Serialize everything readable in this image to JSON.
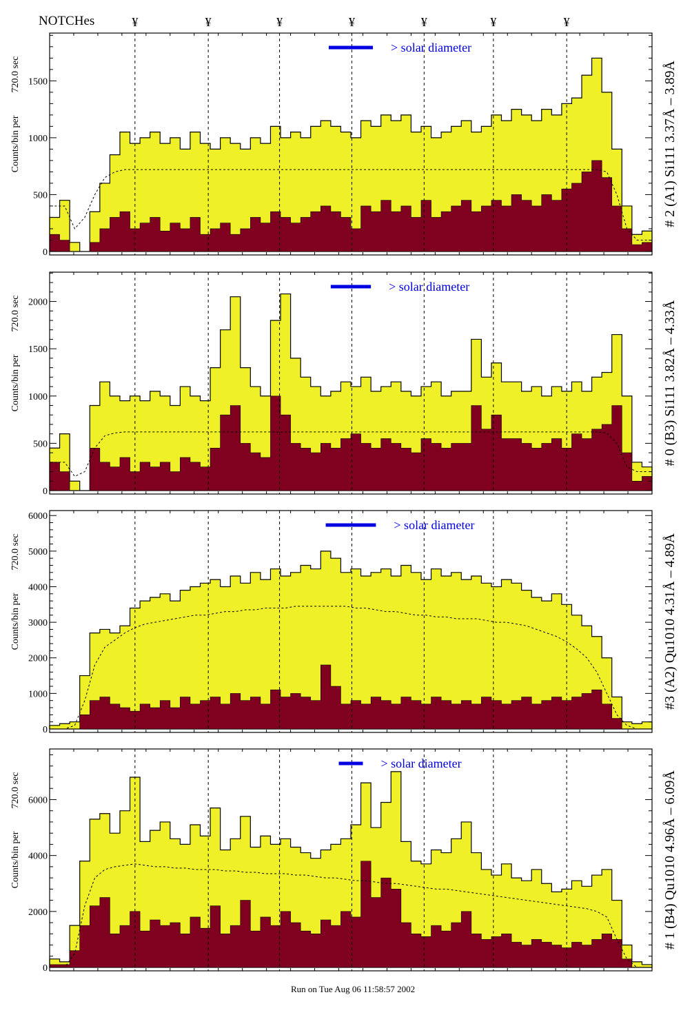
{
  "chart_data": {
    "type": "bar",
    "header_label": "NOTCHes",
    "notch_marker": "¥",
    "notch_positions": [
      8.5,
      15.8,
      22.9,
      30.1,
      37.3,
      44.2,
      51.5
    ],
    "xlim": [
      0,
      60
    ],
    "ylabel": "Counts/bin per",
    "ylabel2": "720.0 sec",
    "solar_label": "> solar diameter",
    "footer": "Run on Tue Aug 06 11:58:57 2002",
    "colors": {
      "total": "#f0f028",
      "component": "#800020",
      "solar": "#0000e0"
    },
    "panels": [
      {
        "title": "# 2 (A1) Si111  3.37Å – 3.89Å",
        "ylim": [
          0,
          1920
        ],
        "yticks": [
          0,
          500,
          1000,
          1500
        ],
        "solar_diameter_bins": [
          27.8,
          32.2
        ],
        "series": [
          {
            "name": "total",
            "values": [
              300,
              450,
              80,
              0,
              350,
              600,
              850,
              1050,
              950,
              1000,
              1050,
              950,
              1000,
              900,
              1050,
              950,
              900,
              1000,
              950,
              900,
              1000,
              950,
              1100,
              1000,
              1050,
              1000,
              1100,
              1150,
              1100,
              1050,
              1000,
              1150,
              1100,
              1200,
              1150,
              1200,
              1050,
              1100,
              1000,
              1050,
              1100,
              1150,
              1050,
              1100,
              1200,
              1150,
              1250,
              1200,
              1150,
              1250,
              1200,
              1300,
              1350,
              1550,
              1700,
              1400,
              900,
              400,
              150,
              180
            ]
          },
          {
            "name": "component",
            "values": [
              150,
              100,
              0,
              0,
              80,
              200,
              300,
              350,
              200,
              250,
              300,
              180,
              250,
              200,
              300,
              150,
              200,
              250,
              150,
              200,
              300,
              250,
              350,
              300,
              250,
              300,
              350,
              400,
              350,
              300,
              200,
              400,
              350,
              450,
              350,
              400,
              300,
              450,
              300,
              350,
              400,
              450,
              350,
              400,
              450,
              400,
              500,
              450,
              400,
              500,
              450,
              550,
              600,
              700,
              800,
              650,
              400,
              200,
              60,
              80
            ]
          },
          {
            "name": "smooth",
            "values": [
              400,
              400,
              200,
              300,
              500,
              650,
              700,
              720,
              720,
              720,
              720,
              720,
              720,
              720,
              720,
              720,
              720,
              720,
              720,
              720,
              720,
              720,
              720,
              720,
              720,
              720,
              720,
              720,
              720,
              720,
              720,
              720,
              720,
              720,
              720,
              720,
              720,
              720,
              720,
              720,
              720,
              720,
              720,
              720,
              720,
              720,
              720,
              720,
              720,
              720,
              720,
              720,
              720,
              720,
              720,
              700,
              500,
              200,
              100,
              100
            ]
          }
        ]
      },
      {
        "title": "# 0 (B3) Si111  3.82Å – 4.33Å",
        "ylim": [
          0,
          2310
        ],
        "yticks": [
          0,
          500,
          1000,
          1500,
          2000
        ],
        "solar_diameter_bins": [
          28.0,
          32.0
        ],
        "series": [
          {
            "name": "total",
            "values": [
              450,
              600,
              100,
              0,
              900,
              1150,
              1000,
              950,
              1000,
              950,
              1050,
              1000,
              900,
              1100,
              1000,
              950,
              1300,
              1700,
              2050,
              1300,
              1100,
              1000,
              1800,
              2080,
              1400,
              1200,
              1100,
              1000,
              1050,
              1150,
              1100,
              1200,
              1050,
              1100,
              1150,
              1050,
              1000,
              1100,
              1150,
              1000,
              1050,
              1050,
              1600,
              1200,
              1350,
              1150,
              1150,
              1050,
              1100,
              1000,
              1100,
              1050,
              1150,
              1050,
              1200,
              1250,
              1650,
              1000,
              300,
              250
            ]
          },
          {
            "name": "component",
            "values": [
              300,
              200,
              0,
              0,
              450,
              300,
              250,
              350,
              200,
              300,
              250,
              300,
              200,
              350,
              300,
              250,
              450,
              800,
              900,
              500,
              400,
              350,
              1000,
              800,
              500,
              450,
              400,
              500,
              450,
              550,
              600,
              500,
              450,
              550,
              500,
              450,
              400,
              550,
              500,
              450,
              500,
              500,
              900,
              650,
              800,
              550,
              550,
              500,
              450,
              500,
              550,
              450,
              600,
              550,
              650,
              700,
              900,
              400,
              100,
              150
            ]
          },
          {
            "name": "smooth",
            "values": [
              300,
              300,
              150,
              200,
              450,
              580,
              610,
              620,
              620,
              620,
              620,
              620,
              620,
              620,
              620,
              620,
              620,
              620,
              620,
              620,
              620,
              620,
              620,
              620,
              620,
              620,
              620,
              620,
              620,
              620,
              620,
              620,
              620,
              620,
              620,
              620,
              620,
              620,
              620,
              620,
              620,
              620,
              620,
              620,
              620,
              620,
              620,
              620,
              620,
              620,
              620,
              620,
              620,
              620,
              620,
              610,
              500,
              250,
              200,
              200
            ]
          }
        ]
      },
      {
        "title": "#3 (A2) Qu1010  4.31Å – 4.89Å",
        "ylim": [
          0,
          6140
        ],
        "yticks": [
          0,
          1000,
          2000,
          3000,
          4000,
          5000,
          6000
        ],
        "solar_diameter_bins": [
          27.5,
          32.5
        ],
        "series": [
          {
            "name": "total",
            "values": [
              100,
              150,
              200,
              1500,
              2700,
              2800,
              2700,
              2900,
              3400,
              3600,
              3700,
              3800,
              3600,
              3900,
              4000,
              4100,
              4200,
              4000,
              4300,
              4100,
              4400,
              4200,
              4500,
              4300,
              4400,
              4600,
              4500,
              5000,
              4800,
              4400,
              4500,
              4300,
              4400,
              4500,
              4300,
              4600,
              4400,
              4200,
              4500,
              4300,
              4400,
              4200,
              4300,
              4100,
              4000,
              4200,
              4100,
              3900,
              3700,
              3600,
              3800,
              3500,
              3200,
              2900,
              2600,
              2000,
              900,
              200,
              150,
              200
            ]
          },
          {
            "name": "component",
            "values": [
              0,
              0,
              0,
              400,
              800,
              900,
              700,
              600,
              500,
              700,
              600,
              800,
              600,
              900,
              700,
              800,
              900,
              700,
              1000,
              800,
              900,
              700,
              1100,
              900,
              1000,
              900,
              800,
              1800,
              1200,
              700,
              800,
              700,
              900,
              800,
              700,
              900,
              800,
              700,
              900,
              800,
              700,
              800,
              700,
              900,
              800,
              700,
              800,
              900,
              700,
              800,
              900,
              800,
              900,
              1000,
              1100,
              700,
              300,
              0,
              0,
              0
            ]
          },
          {
            "name": "smooth",
            "values": [
              0,
              0,
              100,
              800,
              1800,
              2300,
              2500,
              2700,
              2850,
              2950,
              3000,
              3050,
              3100,
              3150,
              3200,
              3200,
              3250,
              3300,
              3300,
              3350,
              3350,
              3400,
              3400,
              3400,
              3450,
              3450,
              3450,
              3450,
              3450,
              3450,
              3400,
              3400,
              3350,
              3300,
              3300,
              3250,
              3200,
              3200,
              3150,
              3150,
              3100,
              3100,
              3100,
              3050,
              3000,
              3000,
              2950,
              2900,
              2800,
              2700,
              2600,
              2450,
              2250,
              2000,
              1600,
              1000,
              400,
              100,
              0,
              0
            ]
          }
        ]
      },
      {
        "title": "# 1 (B4) Qu1010 4.96Å – 6.09Å",
        "ylim": [
          0,
          7810
        ],
        "yticks": [
          0,
          2000,
          4000,
          6000
        ],
        "solar_diameter_bins": [
          28.8,
          31.2
        ],
        "series": [
          {
            "name": "total",
            "values": [
              300,
              200,
              1500,
              3800,
              5300,
              5500,
              4800,
              5600,
              6800,
              4500,
              4900,
              5200,
              4600,
              4400,
              5100,
              4700,
              5700,
              4200,
              4600,
              5400,
              4300,
              4700,
              4400,
              4600,
              4300,
              4100,
              3900,
              4200,
              4400,
              4600,
              5100,
              6600,
              5000,
              5900,
              7000,
              4500,
              3800,
              3700,
              4200,
              4100,
              4600,
              5200,
              4100,
              3500,
              3300,
              3700,
              3200,
              3100,
              3500,
              3000,
              2700,
              2800,
              3100,
              2900,
              3300,
              3500,
              2400,
              800,
              200,
              100
            ]
          },
          {
            "name": "component",
            "values": [
              100,
              100,
              600,
              1500,
              2200,
              2500,
              1200,
              1500,
              2000,
              1300,
              1700,
              1500,
              1600,
              1200,
              1800,
              1400,
              2200,
              1200,
              1500,
              2400,
              1300,
              1800,
              1500,
              2000,
              1600,
              1300,
              1200,
              1700,
              1500,
              2000,
              1800,
              3800,
              2500,
              3200,
              2800,
              1600,
              1200,
              1100,
              1500,
              1300,
              1600,
              2000,
              1200,
              1000,
              1100,
              1200,
              900,
              800,
              1000,
              900,
              800,
              700,
              900,
              800,
              1000,
              1200,
              1000,
              300,
              0,
              0
            ]
          },
          {
            "name": "smooth",
            "values": [
              0,
              0,
              500,
              2200,
              3200,
              3500,
              3600,
              3650,
              3700,
              3650,
              3600,
              3600,
              3550,
              3550,
              3500,
              3500,
              3500,
              3450,
              3450,
              3400,
              3400,
              3350,
              3350,
              3350,
              3300,
              3300,
              3250,
              3200,
              3200,
              3150,
              3100,
              3100,
              3050,
              3000,
              3000,
              2950,
              2900,
              2850,
              2800,
              2800,
              2750,
              2700,
              2650,
              2600,
              2550,
              2500,
              2450,
              2400,
              2350,
              2300,
              2250,
              2200,
              2150,
              2100,
              2000,
              1800,
              1000,
              300,
              0,
              0
            ]
          }
        ]
      }
    ]
  }
}
